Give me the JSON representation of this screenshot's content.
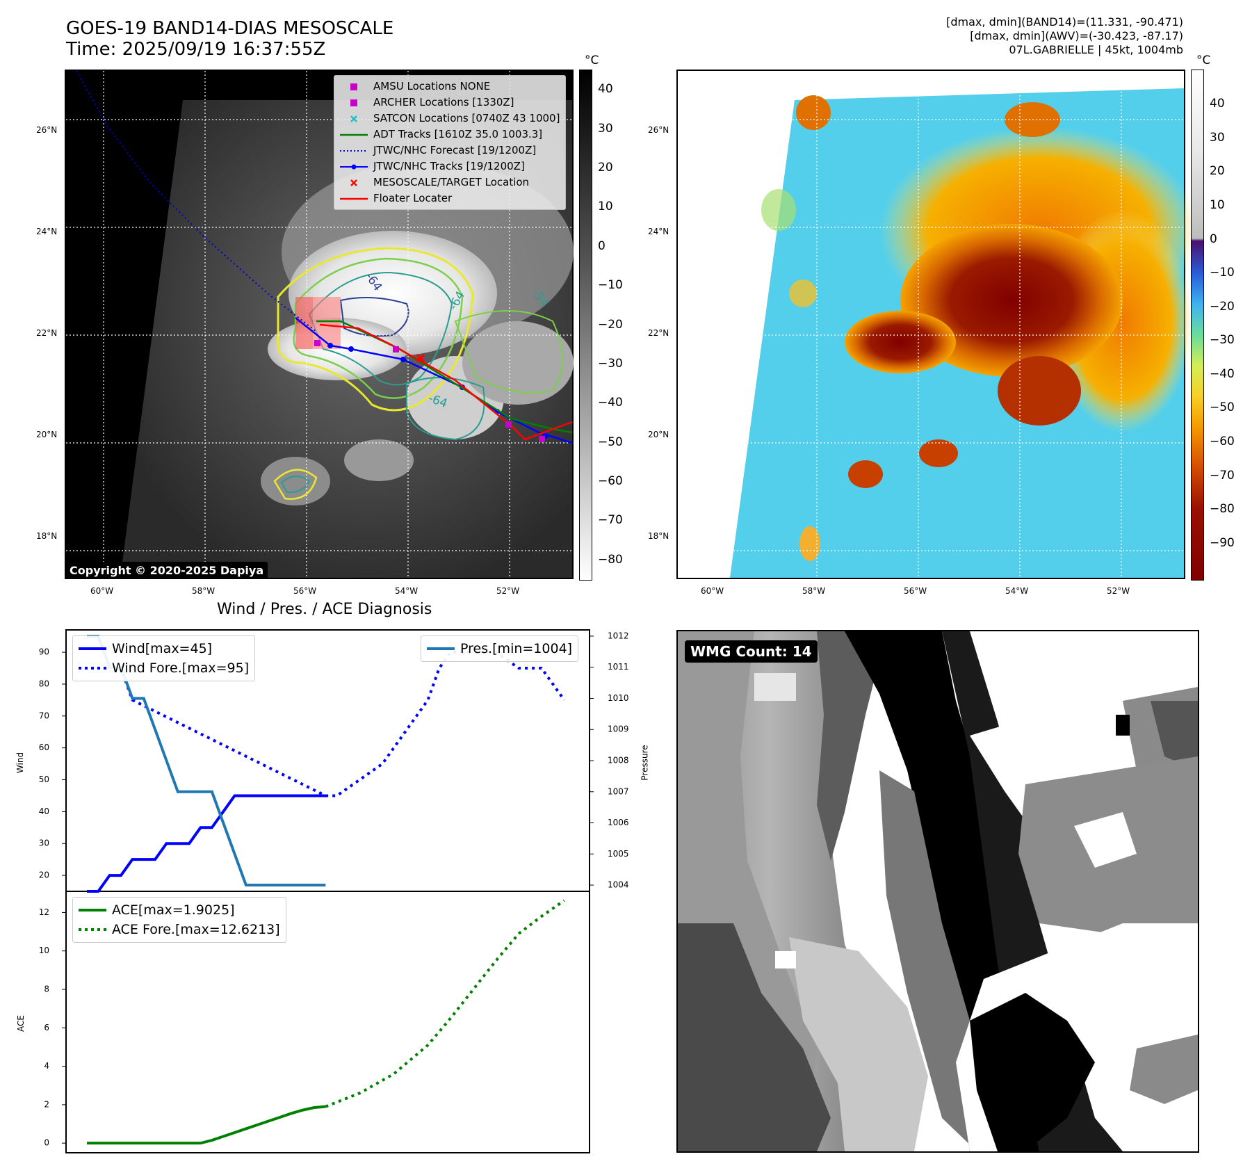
{
  "header": {
    "title_line1": "GOES-19 BAND14-DIAS MESOSCALE",
    "title_line2": "Time: 2025/09/19 16:37:55Z",
    "info_line1": "[dmax, dmin](BAND14)=(11.331, -90.471)",
    "info_line2": "[dmax, dmin](AWV)=(-30.423, -87.17)",
    "info_line3": "07L.GABRIELLE | 45kt, 1004mb"
  },
  "map": {
    "lat_labels": [
      "26°N",
      "24°N",
      "22°N",
      "20°N",
      "18°N"
    ],
    "lon_labels": [
      "60°W",
      "58°W",
      "56°W",
      "54°W",
      "52°W"
    ],
    "contour_labels": [
      "-64",
      "-54",
      "-64",
      "-64"
    ],
    "legend": [
      {
        "label": "AMSU Locations NONE",
        "symbol": "square",
        "color": "#cc00cc"
      },
      {
        "label": "ARCHER Locations [1330Z]",
        "symbol": "square",
        "color": "#cc00cc"
      },
      {
        "label": "SATCON Locations [0740Z 43 1000]",
        "symbol": "x",
        "color": "#17becf"
      },
      {
        "label": "ADT Tracks [1610Z 35.0 1003.3]",
        "symbol": "line",
        "color": "#008000"
      },
      {
        "label": "JTWC/NHC Forecast [19/1200Z]",
        "symbol": "dotted",
        "color": "#0000cc"
      },
      {
        "label": "JTWC/NHC Tracks [19/1200Z]",
        "symbol": "line-dot",
        "color": "#0000ff"
      },
      {
        "label": "MESOSCALE/TARGET Location",
        "symbol": "x",
        "color": "#ff0000"
      },
      {
        "label": "Floater Locater",
        "symbol": "line",
        "color": "#ff0000"
      }
    ],
    "copyright": "Copyright © 2020-2025 Dapiya"
  },
  "colorbar_gray": {
    "unit": "°C",
    "ticks": [
      "40",
      "30",
      "20",
      "10",
      "0",
      "−10",
      "−20",
      "−30",
      "−40",
      "−50",
      "−60",
      "−70",
      "−80"
    ]
  },
  "colorbar_color": {
    "unit": "°C",
    "ticks": [
      "40",
      "30",
      "20",
      "10",
      "0",
      "−10",
      "−20",
      "−30",
      "−40",
      "−50",
      "−60",
      "−70",
      "−80",
      "−90"
    ]
  },
  "diagnosis": {
    "title": "Wind / Pres. / ACE Diagnosis",
    "wind_axis_label": "Wind",
    "pressure_axis_label": "Pressure",
    "ace_axis_label": "ACE",
    "wind_ticks": [
      "90",
      "80",
      "70",
      "60",
      "50",
      "40",
      "30",
      "20"
    ],
    "pressure_ticks": [
      "1012",
      "1011",
      "1010",
      "1009",
      "1008",
      "1007",
      "1006",
      "1005",
      "1004"
    ],
    "ace_ticks": [
      "12",
      "10",
      "8",
      "6",
      "4",
      "2",
      "0"
    ],
    "legend_wind": "Wind[max=45]",
    "legend_wind_fore": "Wind Fore.[max=95]",
    "legend_pres": "Pres.[min=1004]",
    "legend_ace": "ACE[max=1.9025]",
    "legend_ace_fore": "ACE Fore.[max=12.6213]"
  },
  "wmg": {
    "label": "WMG Count: 14"
  },
  "chart_data": [
    {
      "type": "line",
      "title": "Wind / Pres. / ACE Diagnosis",
      "ylabel": "Wind",
      "ylim": [
        15,
        97
      ],
      "x": [
        0,
        1,
        2,
        3,
        4,
        5,
        6,
        7,
        8,
        9,
        10,
        11,
        12,
        13,
        14,
        15,
        16,
        17,
        18,
        19,
        20,
        21
      ],
      "series": [
        {
          "name": "Wind[max=45]",
          "style": "solid",
          "color": "#0000ff",
          "x": [
            0,
            1,
            2,
            3,
            4,
            5,
            6,
            7,
            8,
            9,
            10,
            11,
            12,
            13,
            14,
            15,
            16,
            17,
            18,
            19,
            20,
            21
          ],
          "values": [
            15,
            15,
            20,
            20,
            25,
            25,
            25,
            30,
            30,
            30,
            35,
            35,
            40,
            45,
            45,
            45,
            45,
            45,
            45,
            45,
            45,
            45
          ]
        },
        {
          "name": "Wind Fore.[max=95]",
          "style": "dotted",
          "color": "#0000ff",
          "x": [
            0,
            1,
            2,
            3,
            4,
            21,
            22,
            26,
            28,
            30,
            31,
            32,
            34,
            36,
            38,
            40,
            42
          ],
          "values": [
            95,
            95,
            85,
            85,
            75,
            45,
            45,
            55,
            65,
            75,
            85,
            90,
            90,
            90,
            85,
            85,
            75
          ]
        }
      ]
    },
    {
      "type": "line",
      "ylabel": "Pressure",
      "ylim": [
        1003.8,
        1012.2
      ],
      "series": [
        {
          "name": "Pres.[min=1004]",
          "style": "solid",
          "color": "#1f77b4",
          "x": [
            0,
            1,
            2,
            3,
            4,
            5,
            6,
            7,
            8,
            9,
            10,
            11,
            12,
            13,
            14,
            15,
            16,
            17,
            18,
            19,
            20,
            21
          ],
          "values": [
            1012,
            1012,
            1011,
            1011,
            1010,
            1010,
            1009,
            1008,
            1007,
            1007,
            1007,
            1007,
            1006,
            1005,
            1004,
            1004,
            1004,
            1004,
            1004,
            1004,
            1004,
            1004
          ]
        }
      ]
    },
    {
      "type": "line",
      "ylabel": "ACE",
      "ylim": [
        -0.5,
        13.1
      ],
      "series": [
        {
          "name": "ACE[max=1.9025]",
          "style": "solid",
          "color": "#008000",
          "x": [
            0,
            10,
            11,
            12,
            13,
            14,
            15,
            16,
            17,
            18,
            19,
            20,
            21
          ],
          "values": [
            0,
            0,
            0.15,
            0.35,
            0.55,
            0.75,
            0.95,
            1.15,
            1.35,
            1.55,
            1.72,
            1.85,
            1.9025
          ]
        },
        {
          "name": "ACE Fore.[max=12.6213]",
          "style": "dotted",
          "color": "#008000",
          "x": [
            21,
            24,
            27,
            30,
            32,
            34,
            36,
            38,
            40,
            42
          ],
          "values": [
            1.9025,
            2.6,
            3.6,
            5.1,
            6.5,
            8.0,
            9.5,
            10.9,
            11.8,
            12.6213
          ]
        }
      ]
    }
  ]
}
